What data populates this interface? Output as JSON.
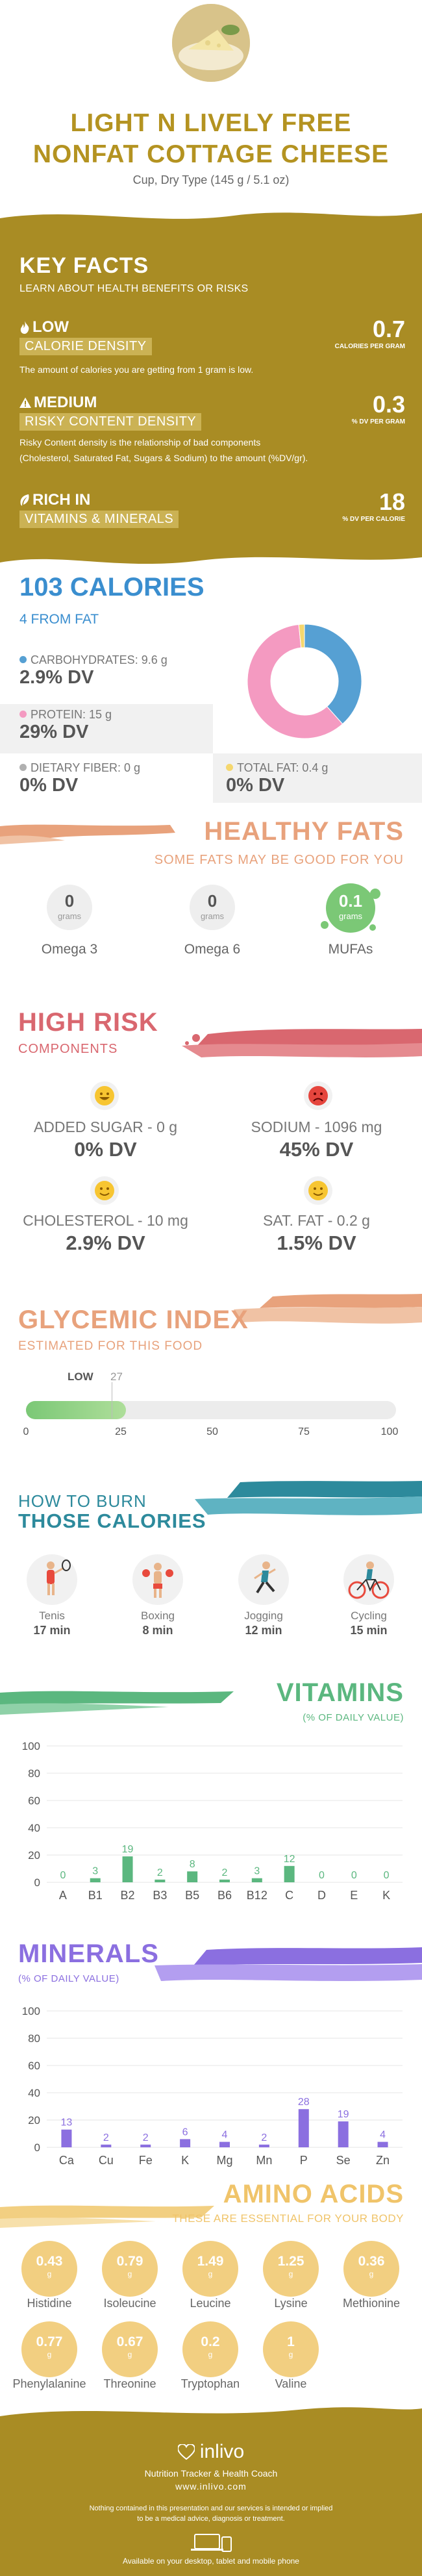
{
  "header": {
    "title_line1": "LIGHT N LIVELY FREE",
    "title_line2": "NONFAT COTTAGE CHEESE",
    "serving": "Cup, Dry Type (145 g / 5.1 oz)"
  },
  "key_facts": {
    "title": "KEY FACTS",
    "subtitle": "LEARN ABOUT HEALTH BENEFITS OR RISKS",
    "items": [
      {
        "tag": "LOW",
        "label": "CALORIE DENSITY",
        "desc": "The amount of calories you are getting from 1 gram is low.",
        "desc2": "",
        "value": "0.7",
        "unit": "CALORIES PER GRAM"
      },
      {
        "tag": "MEDIUM",
        "label": "RISKY CONTENT DENSITY",
        "desc": "Risky Content density is the relationship of bad components",
        "desc2": "(Cholesterol, Saturated Fat, Sugars & Sodium) to the amount (%DV/gr).",
        "value": "0.3",
        "unit": "% DV PER GRAM"
      },
      {
        "tag": "RICH  IN",
        "label": "VITAMINS & MINERALS",
        "desc": "",
        "desc2": "",
        "value": "18",
        "unit": "% DV PER CALORIE"
      }
    ]
  },
  "calories": {
    "title": "103 CALORIES",
    "subtitle": "4 FROM FAT",
    "carbs_label": "CARBOHYDRATES: 9.6 g",
    "carbs_dv": "2.9% DV",
    "protein_label": "PROTEIN: 15 g",
    "protein_dv": "29% DV",
    "fiber_label": "DIETARY FIBER: 0 g",
    "fiber_dv": "0% DV",
    "fat_label": "TOTAL FAT: 0.4 g",
    "fat_dv": "0% DV",
    "colors": {
      "carbs": "#56a0d3",
      "protein": "#f49ac1",
      "fiber": "#b0b0b0",
      "fat": "#f5d76e"
    }
  },
  "donut": {
    "carbs": 9.6,
    "protein": 15,
    "fat": 0.4
  },
  "fats": {
    "title": "HEALTHY FATS",
    "subtitle": "SOME FATS MAY BE GOOD FOR YOU",
    "items": [
      {
        "value": "0",
        "unit": "grams",
        "name": "Omega 3"
      },
      {
        "value": "0",
        "unit": "grams",
        "name": "Omega 6"
      },
      {
        "value": "0.1",
        "unit": "grams",
        "name": "MUFAs"
      }
    ]
  },
  "risk": {
    "title": "HIGH RISK",
    "subtitle": "COMPONENTS",
    "items": [
      {
        "label": "ADDED SUGAR - 0 g",
        "dv": "0% DV"
      },
      {
        "label": "SODIUM - 1096 mg",
        "dv": "45% DV"
      },
      {
        "label": "CHOLESTEROL - 10 mg",
        "dv": "2.9% DV"
      },
      {
        "label": "SAT. FAT - 0.2 g",
        "dv": "1.5% DV"
      }
    ]
  },
  "glycemic": {
    "title": "GLYCEMIC INDEX",
    "subtitle": "ESTIMATED FOR THIS FOOD",
    "level": "LOW",
    "value": 27,
    "value_label": "27",
    "ticks": [
      "0",
      "25",
      "50",
      "75",
      "100"
    ]
  },
  "burn": {
    "title1": "HOW TO BURN",
    "title2": "THOSE CALORIES",
    "items": [
      {
        "name": "Tenis",
        "time": "17 min"
      },
      {
        "name": "Boxing",
        "time": "8 min"
      },
      {
        "name": "Jogging",
        "time": "12 min"
      },
      {
        "name": "Cycling",
        "time": "15 min"
      }
    ]
  },
  "chart_data": [
    {
      "type": "bar",
      "title": "VITAMINS",
      "subtitle": "(% OF DAILY VALUE)",
      "categories": [
        "A",
        "B1",
        "B2",
        "B3",
        "B5",
        "B6",
        "B12",
        "C",
        "D",
        "E",
        "K"
      ],
      "values": [
        0,
        3,
        19,
        2,
        8,
        2,
        3,
        12,
        0,
        0,
        0
      ],
      "ylim": [
        0,
        100
      ],
      "yticks": [
        "0",
        "20",
        "40",
        "60",
        "80",
        "100"
      ],
      "color": "#5bb77f"
    },
    {
      "type": "bar",
      "title": "MINERALS",
      "subtitle": "(% OF DAILY VALUE)",
      "categories": [
        "Ca",
        "Cu",
        "Fe",
        "K",
        "Mg",
        "Mn",
        "P",
        "Se",
        "Zn"
      ],
      "values": [
        13,
        2,
        2,
        6,
        4,
        2,
        28,
        19,
        4
      ],
      "ylim": [
        0,
        100
      ],
      "yticks": [
        "0",
        "20",
        "40",
        "60",
        "80",
        "100"
      ],
      "color": "#8b6fe0"
    }
  ],
  "amino": {
    "title": "AMINO ACIDS",
    "subtitle": "THESE ARE ESSENTIAL FOR YOUR BODY",
    "unit": "g",
    "items": [
      {
        "value": "0.43",
        "name": "Histidine"
      },
      {
        "value": "0.79",
        "name": "Isoleucine"
      },
      {
        "value": "1.49",
        "name": "Leucine"
      },
      {
        "value": "1.25",
        "name": "Lysine"
      },
      {
        "value": "0.36",
        "name": "Methionine"
      },
      {
        "value": "0.77",
        "name": "Phenylalanine"
      },
      {
        "value": "0.67",
        "name": "Threonine"
      },
      {
        "value": "0.2",
        "name": "Tryptophan"
      },
      {
        "value": "1",
        "name": "Valine"
      }
    ]
  },
  "footer": {
    "brand": "inlivo",
    "tagline": "Nutrition Tracker & Health Coach",
    "url": "www.inlivo.com",
    "disclaimer1": "Nothing contained in this presentation and our services is intended or implied",
    "disclaimer2": "to be a medical advice, diagnosis or treatment.",
    "available": "Available on your desktop, tablet and mobile phone"
  }
}
